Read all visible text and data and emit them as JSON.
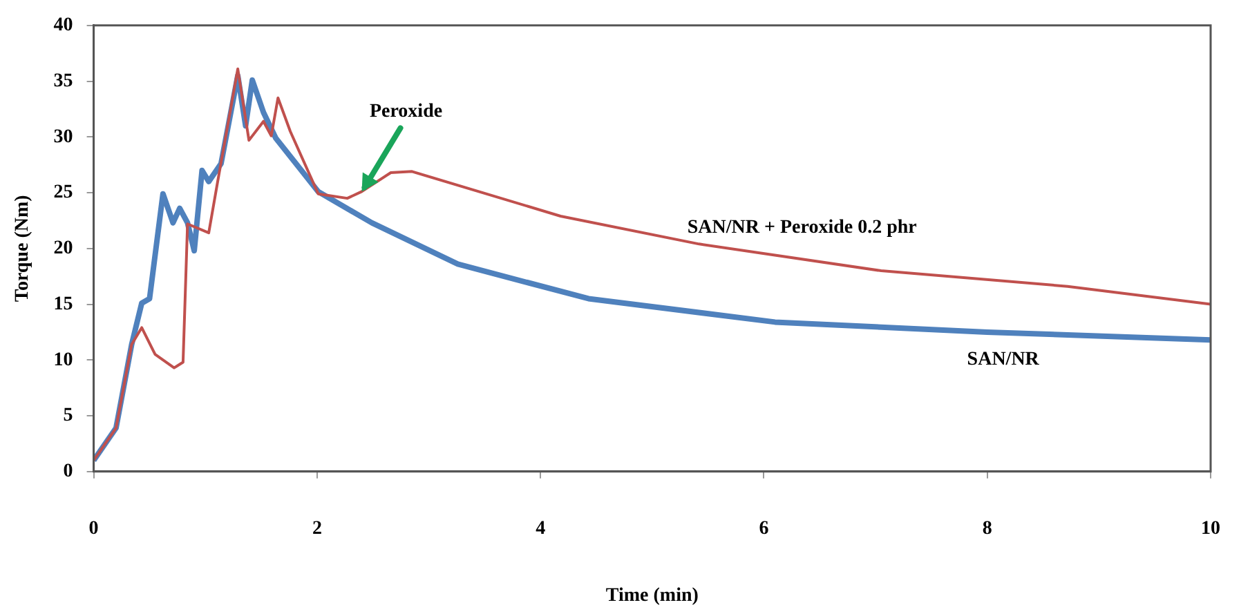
{
  "chart_data": {
    "type": "line",
    "xlabel": "Time (min)",
    "ylabel": "Torque (Nm)",
    "xlim": [
      0,
      10
    ],
    "xticks": [
      0,
      2,
      4,
      6,
      8,
      10
    ],
    "ylim": [
      0,
      40
    ],
    "yticks": [
      0,
      5,
      10,
      15,
      20,
      25,
      30,
      35,
      40
    ],
    "grid": false,
    "legend": false,
    "marker": "none",
    "line_style": "solid",
    "annotations": [
      {
        "text": "Peroxide",
        "x": 2.4,
        "y": 25.1
      }
    ],
    "series": [
      {
        "name": "SAN/NR + Peroxide 0.2 phr",
        "color": "#c0504d",
        "x": [
          0,
          0.2,
          0.34,
          0.43,
          0.55,
          0.72,
          0.8,
          0.84,
          1.03,
          1.11,
          1.29,
          1.39,
          1.52,
          1.59,
          1.65,
          1.76,
          2.01,
          2.27,
          2.4,
          2.66,
          2.85,
          4.18,
          5.42,
          7.05,
          8.72,
          10
        ],
        "values": [
          1,
          3.9,
          11.4,
          12.9,
          10.5,
          9.3,
          9.8,
          22.2,
          21.4,
          26,
          36.1,
          29.7,
          31.4,
          30.1,
          33.5,
          30.5,
          24.9,
          24.5,
          25.1,
          26.8,
          26.9,
          22.9,
          20.4,
          18,
          16.6,
          15
        ]
      },
      {
        "name": "SAN/NR",
        "color": "#4f81bd",
        "x": [
          0,
          0.2,
          0.34,
          0.43,
          0.5,
          0.62,
          0.71,
          0.77,
          0.84,
          0.9,
          0.97,
          1.03,
          1.14,
          1.29,
          1.36,
          1.42,
          1.52,
          1.63,
          2.01,
          2.49,
          3.26,
          4.43,
          6.1,
          8,
          10
        ],
        "values": [
          1,
          3.9,
          11.4,
          15.1,
          15.5,
          24.9,
          22.3,
          23.6,
          22.3,
          19.8,
          27,
          26,
          27.6,
          35.5,
          31,
          35.1,
          32.2,
          29.9,
          25.1,
          22.3,
          18.6,
          15.5,
          13.4,
          12.5,
          11.8
        ]
      }
    ]
  }
}
